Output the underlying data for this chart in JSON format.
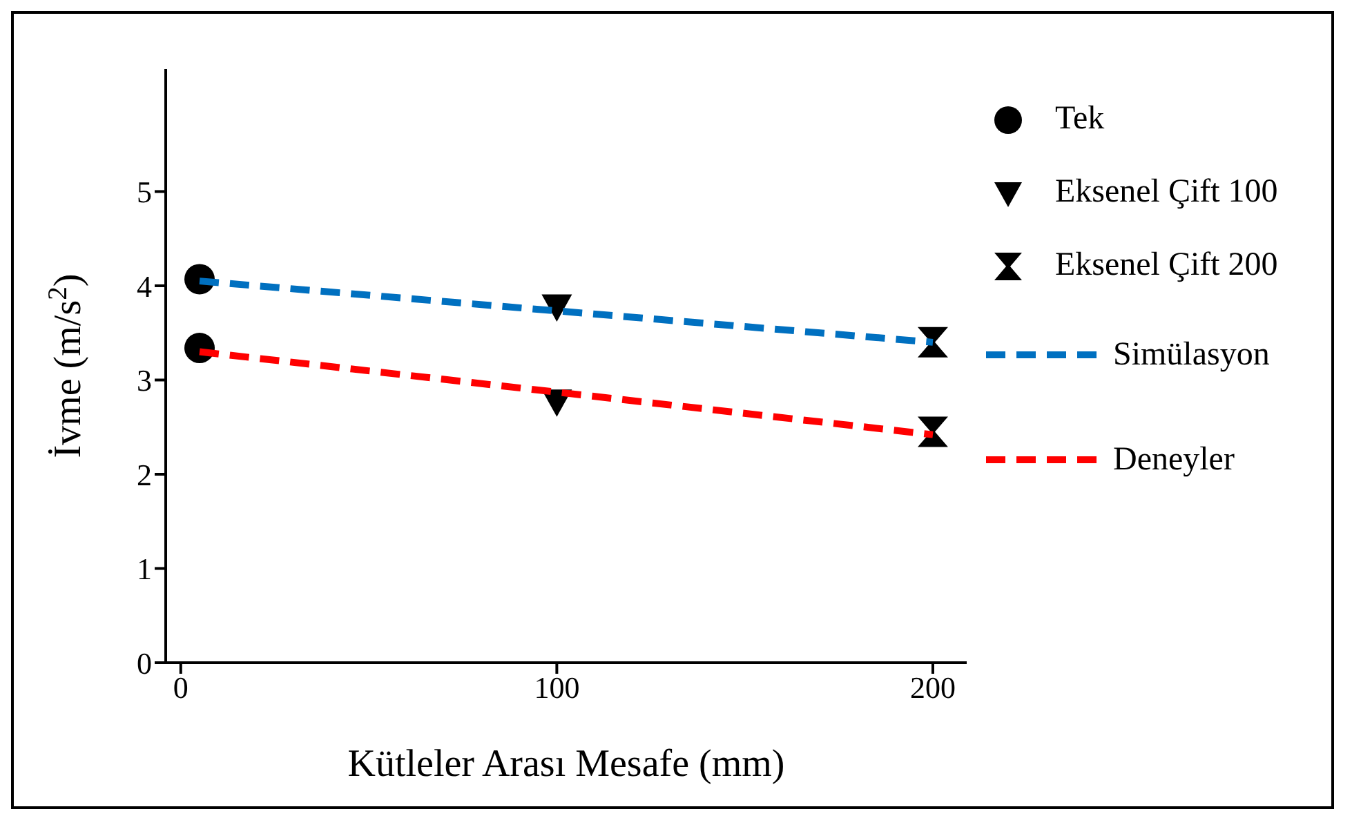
{
  "chart_data": {
    "type": "scatter",
    "xlabel": "Kütleler Arası Mesafe   (mm)",
    "ylabel": "İvme  (m/s$^{2}$)",
    "xlim": [
      -4,
      209
    ],
    "xticks": [
      0,
      100,
      200
    ],
    "ylim": [
      0,
      6.3
    ],
    "yticks": [
      0,
      1,
      2,
      3,
      4,
      5
    ],
    "grid": false,
    "legend": "right",
    "series": [
      {
        "name": "Tek",
        "marker": "circle",
        "color": "#000000",
        "x": [
          5,
          5
        ],
        "values": [
          4.07,
          3.34
        ]
      },
      {
        "name": "Eksenel Çift 100",
        "marker": "triangle",
        "color": "#000000",
        "x": [
          100,
          100
        ],
        "values": [
          3.78,
          2.77
        ]
      },
      {
        "name": "Eksenel Çift 200",
        "color": "#000000",
        "x": [
          200,
          200
        ],
        "values": [
          3.4,
          2.45
        ]
      },
      {
        "name": "Simülasyon",
        "type": "line",
        "marker": "none",
        "line_style": "dashed",
        "color": "#0070c0",
        "x": [
          5,
          200
        ],
        "values": [
          4.05,
          3.4
        ]
      },
      {
        "name": "Deneyler",
        "type": "line",
        "marker": "none",
        "line_style": "dashed",
        "color": "#ff0000",
        "x": [
          5,
          200
        ],
        "values": [
          3.3,
          2.42
        ]
      }
    ]
  }
}
